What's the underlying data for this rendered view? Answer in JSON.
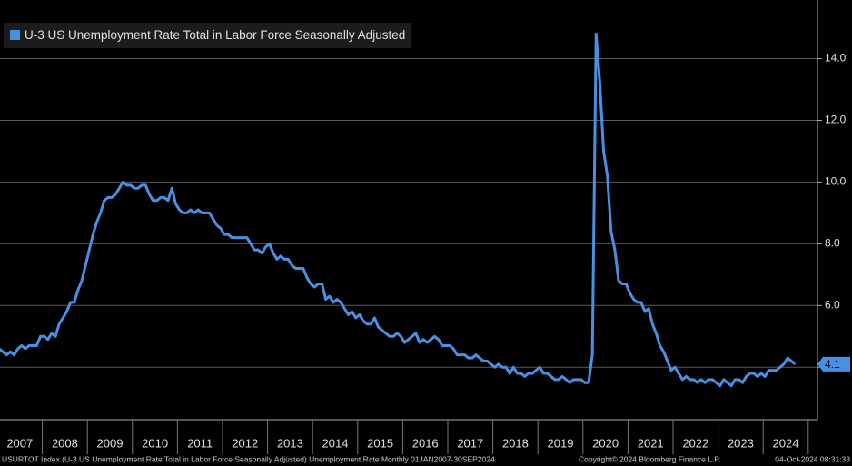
{
  "chart_data": {
    "type": "line",
    "legend": "U-3 US Unemployment Rate Total in Labor Force Seasonally Adjusted",
    "x": [
      "2007-01",
      "2007-02",
      "2007-03",
      "2007-04",
      "2007-05",
      "2007-06",
      "2007-07",
      "2007-08",
      "2007-09",
      "2007-10",
      "2007-11",
      "2007-12",
      "2008-01",
      "2008-02",
      "2008-03",
      "2008-04",
      "2008-05",
      "2008-06",
      "2008-07",
      "2008-08",
      "2008-09",
      "2008-10",
      "2008-11",
      "2008-12",
      "2009-01",
      "2009-02",
      "2009-03",
      "2009-04",
      "2009-05",
      "2009-06",
      "2009-07",
      "2009-08",
      "2009-09",
      "2009-10",
      "2009-11",
      "2009-12",
      "2010-01",
      "2010-02",
      "2010-03",
      "2010-04",
      "2010-05",
      "2010-06",
      "2010-07",
      "2010-08",
      "2010-09",
      "2010-10",
      "2010-11",
      "2010-12",
      "2011-01",
      "2011-02",
      "2011-03",
      "2011-04",
      "2011-05",
      "2011-06",
      "2011-07",
      "2011-08",
      "2011-09",
      "2011-10",
      "2011-11",
      "2011-12",
      "2012-01",
      "2012-02",
      "2012-03",
      "2012-04",
      "2012-05",
      "2012-06",
      "2012-07",
      "2012-08",
      "2012-09",
      "2012-10",
      "2012-11",
      "2012-12",
      "2013-01",
      "2013-02",
      "2013-03",
      "2013-04",
      "2013-05",
      "2013-06",
      "2013-07",
      "2013-08",
      "2013-09",
      "2013-10",
      "2013-11",
      "2013-12",
      "2014-01",
      "2014-02",
      "2014-03",
      "2014-04",
      "2014-05",
      "2014-06",
      "2014-07",
      "2014-08",
      "2014-09",
      "2014-10",
      "2014-11",
      "2014-12",
      "2015-01",
      "2015-02",
      "2015-03",
      "2015-04",
      "2015-05",
      "2015-06",
      "2015-07",
      "2015-08",
      "2015-09",
      "2015-10",
      "2015-11",
      "2015-12",
      "2016-01",
      "2016-02",
      "2016-03",
      "2016-04",
      "2016-05",
      "2016-06",
      "2016-07",
      "2016-08",
      "2016-09",
      "2016-10",
      "2016-11",
      "2016-12",
      "2017-01",
      "2017-02",
      "2017-03",
      "2017-04",
      "2017-05",
      "2017-06",
      "2017-07",
      "2017-08",
      "2017-09",
      "2017-10",
      "2017-11",
      "2017-12",
      "2018-01",
      "2018-02",
      "2018-03",
      "2018-04",
      "2018-05",
      "2018-06",
      "2018-07",
      "2018-08",
      "2018-09",
      "2018-10",
      "2018-11",
      "2018-12",
      "2019-01",
      "2019-02",
      "2019-03",
      "2019-04",
      "2019-05",
      "2019-06",
      "2019-07",
      "2019-08",
      "2019-09",
      "2019-10",
      "2019-11",
      "2019-12",
      "2020-01",
      "2020-02",
      "2020-03",
      "2020-04",
      "2020-05",
      "2020-06",
      "2020-07",
      "2020-08",
      "2020-09",
      "2020-10",
      "2020-11",
      "2020-12",
      "2021-01",
      "2021-02",
      "2021-03",
      "2021-04",
      "2021-05",
      "2021-06",
      "2021-07",
      "2021-08",
      "2021-09",
      "2021-10",
      "2021-11",
      "2021-12",
      "2022-01",
      "2022-02",
      "2022-03",
      "2022-04",
      "2022-05",
      "2022-06",
      "2022-07",
      "2022-08",
      "2022-09",
      "2022-10",
      "2022-11",
      "2022-12",
      "2023-01",
      "2023-02",
      "2023-03",
      "2023-04",
      "2023-05",
      "2023-06",
      "2023-07",
      "2023-08",
      "2023-09",
      "2023-10",
      "2023-11",
      "2023-12",
      "2024-01",
      "2024-02",
      "2024-03",
      "2024-04",
      "2024-05",
      "2024-06",
      "2024-07",
      "2024-08",
      "2024-09"
    ],
    "series": [
      {
        "name": "U-3 US Unemployment Rate Total in Labor Force Seasonally Adjusted",
        "color": "#4a90e2",
        "values": [
          4.6,
          4.5,
          4.4,
          4.5,
          4.4,
          4.6,
          4.7,
          4.6,
          4.7,
          4.7,
          4.7,
          5.0,
          5.0,
          4.9,
          5.1,
          5.0,
          5.4,
          5.6,
          5.8,
          6.1,
          6.1,
          6.5,
          6.8,
          7.3,
          7.8,
          8.3,
          8.7,
          9.0,
          9.4,
          9.5,
          9.5,
          9.6,
          9.8,
          10.0,
          9.9,
          9.9,
          9.8,
          9.8,
          9.9,
          9.9,
          9.6,
          9.4,
          9.4,
          9.5,
          9.5,
          9.4,
          9.8,
          9.3,
          9.1,
          9.0,
          9.0,
          9.1,
          9.0,
          9.1,
          9.0,
          9.0,
          9.0,
          8.8,
          8.6,
          8.5,
          8.3,
          8.3,
          8.2,
          8.2,
          8.2,
          8.2,
          8.2,
          8.0,
          7.8,
          7.8,
          7.7,
          7.9,
          8.0,
          7.7,
          7.5,
          7.6,
          7.5,
          7.5,
          7.3,
          7.2,
          7.2,
          7.2,
          6.9,
          6.7,
          6.6,
          6.7,
          6.7,
          6.2,
          6.3,
          6.1,
          6.2,
          6.1,
          5.9,
          5.7,
          5.8,
          5.6,
          5.7,
          5.5,
          5.4,
          5.4,
          5.6,
          5.3,
          5.2,
          5.1,
          5.0,
          5.0,
          5.1,
          5.0,
          4.8,
          4.9,
          5.0,
          5.1,
          4.8,
          4.9,
          4.8,
          4.9,
          5.0,
          4.9,
          4.7,
          4.7,
          4.7,
          4.6,
          4.4,
          4.4,
          4.4,
          4.3,
          4.3,
          4.4,
          4.3,
          4.2,
          4.2,
          4.1,
          4.0,
          4.1,
          4.0,
          4.0,
          3.8,
          4.0,
          3.8,
          3.8,
          3.7,
          3.8,
          3.8,
          3.9,
          4.0,
          3.8,
          3.8,
          3.7,
          3.6,
          3.6,
          3.7,
          3.6,
          3.5,
          3.6,
          3.6,
          3.6,
          3.5,
          3.5,
          4.4,
          14.8,
          13.2,
          11.0,
          10.2,
          8.4,
          7.8,
          6.8,
          6.7,
          6.7,
          6.4,
          6.2,
          6.1,
          6.1,
          5.8,
          5.9,
          5.4,
          5.1,
          4.7,
          4.5,
          4.2,
          3.9,
          4.0,
          3.8,
          3.6,
          3.7,
          3.6,
          3.6,
          3.5,
          3.6,
          3.5,
          3.6,
          3.6,
          3.5,
          3.4,
          3.6,
          3.5,
          3.4,
          3.6,
          3.6,
          3.5,
          3.7,
          3.8,
          3.8,
          3.7,
          3.8,
          3.7,
          3.9,
          3.9,
          3.9,
          4.0,
          4.1,
          4.3,
          4.2,
          4.1
        ]
      }
    ],
    "last_value_label": "4.1",
    "ylim": [
      2.3,
      15.9
    ],
    "yticks": [
      {
        "value": 4,
        "label": "4.0"
      },
      {
        "value": 6,
        "label": "6.0"
      },
      {
        "value": 8,
        "label": "8.0"
      },
      {
        "value": 10,
        "label": "10.0"
      },
      {
        "value": 12,
        "label": "12.0"
      },
      {
        "value": 14,
        "label": "14.0"
      }
    ],
    "xticks": [
      "2007",
      "2008",
      "2009",
      "2010",
      "2011",
      "2012",
      "2013",
      "2014",
      "2015",
      "2016",
      "2017",
      "2018",
      "2019",
      "2020",
      "2021",
      "2022",
      "2023",
      "2024"
    ],
    "grid": true,
    "footer": {
      "source": "USURTOT Index (U-3 US Unemployment Rate Total in Labor Force Seasonally Adjusted) Unemployment Rate  Monthly 01JAN2007-30SEP2024",
      "copyright": "Copyright© 2024 Bloomberg Finance L.P.",
      "timestamp": "04-Oct-2024 08:31:33"
    }
  }
}
